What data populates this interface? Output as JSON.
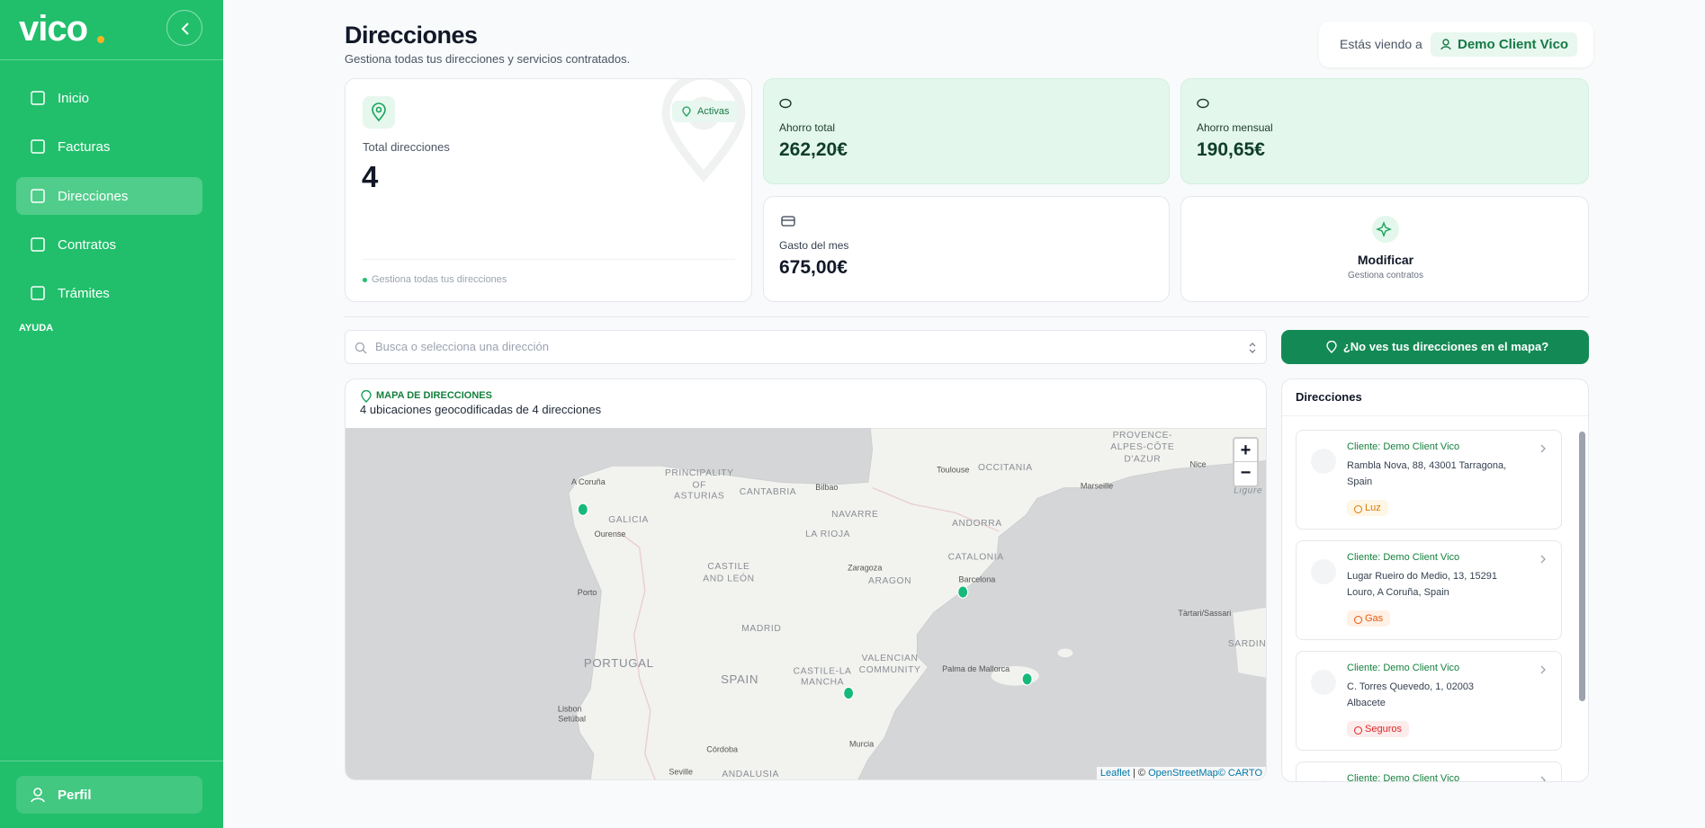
{
  "sidebar": {
    "logo": "vico",
    "nav": [
      "Inicio",
      "Facturas",
      "Direcciones",
      "Contratos",
      "Trámites"
    ],
    "help": "AYUDA",
    "profile": "Perfil"
  },
  "header": {
    "title": "Direcciones",
    "subtitle": "Gestiona todas tus direcciones y servicios contratados.",
    "viewing": "Estás viendo a",
    "client": "Demo Client Vico"
  },
  "stats": {
    "total": {
      "label": "Total direcciones",
      "value": "4",
      "badge": "Activas",
      "footer": "Gestiona todas tus direcciones"
    },
    "saving_total": {
      "label": "Ahorro total",
      "value": "262,20€"
    },
    "saving_month": {
      "label": "Ahorro mensual",
      "value": "190,65€"
    },
    "spend": {
      "label": "Gasto del mes",
      "value": "675,00€"
    },
    "modify": {
      "label": "Modificar",
      "sub": "Gestiona contratos"
    }
  },
  "search": {
    "placeholder": "Busca o selecciona una dirección",
    "button": "¿No ves tus direcciones en el mapa?"
  },
  "map": {
    "title": "MAPA DE DIRECCIONES",
    "subtitle": "4 ubicaciones geocodificadas de 4 direcciones",
    "regions": [
      "PRINCIPALITY",
      "OF",
      "ASTURIAS",
      "CANTABRIA",
      "GALICIA",
      "NAVARRE",
      "LA RIOJA",
      "OCCITANIA",
      "PROVENCE-",
      "ALPES-CÔTE",
      "D'AZUR",
      "ANDORRA",
      "CATALONIA",
      "ARAGON",
      "CASTILE",
      "AND LEÓN",
      "MADRID",
      "PORTUGAL",
      "SPAIN",
      "CASTILE-LA",
      "MANCHA",
      "VALENCIAN",
      "COMMUNITY",
      "ANDALUSIA",
      "SARDIN",
      "Ligure"
    ],
    "cities": [
      "A Coruña",
      "Ourense",
      "Bilbao",
      "Toulouse",
      "Marseille",
      "Nice",
      "Zaragoza",
      "Barcelona",
      "Porto",
      "Palma de Mallorca",
      "Tàrtari/Sassari",
      "Lisbon",
      "Setúbal",
      "Córdoba",
      "Murcia",
      "Seville"
    ],
    "zoom_in": "+",
    "zoom_out": "−",
    "attribution": [
      "Leaflet",
      "| ©",
      "OpenStreetMap",
      "© CARTO"
    ]
  },
  "list": {
    "title": "Direcciones",
    "items": [
      {
        "client": "Cliente: Demo Client Vico",
        "address": "Rambla Nova, 88, 43001 Tarragona, Spain",
        "tag": "Luz"
      },
      {
        "client": "Cliente: Demo Client Vico",
        "address": "Lugar Rueiro do Medio, 13, 15291 Louro, A Coruña, Spain",
        "tag": "Gas"
      },
      {
        "client": "Cliente: Demo Client Vico",
        "address": "C. Torres Quevedo, 1, 02003 Albacete",
        "tag": "Seguros"
      },
      {
        "client": "Cliente: Demo Client Vico",
        "address": "",
        "tag": ""
      }
    ]
  }
}
